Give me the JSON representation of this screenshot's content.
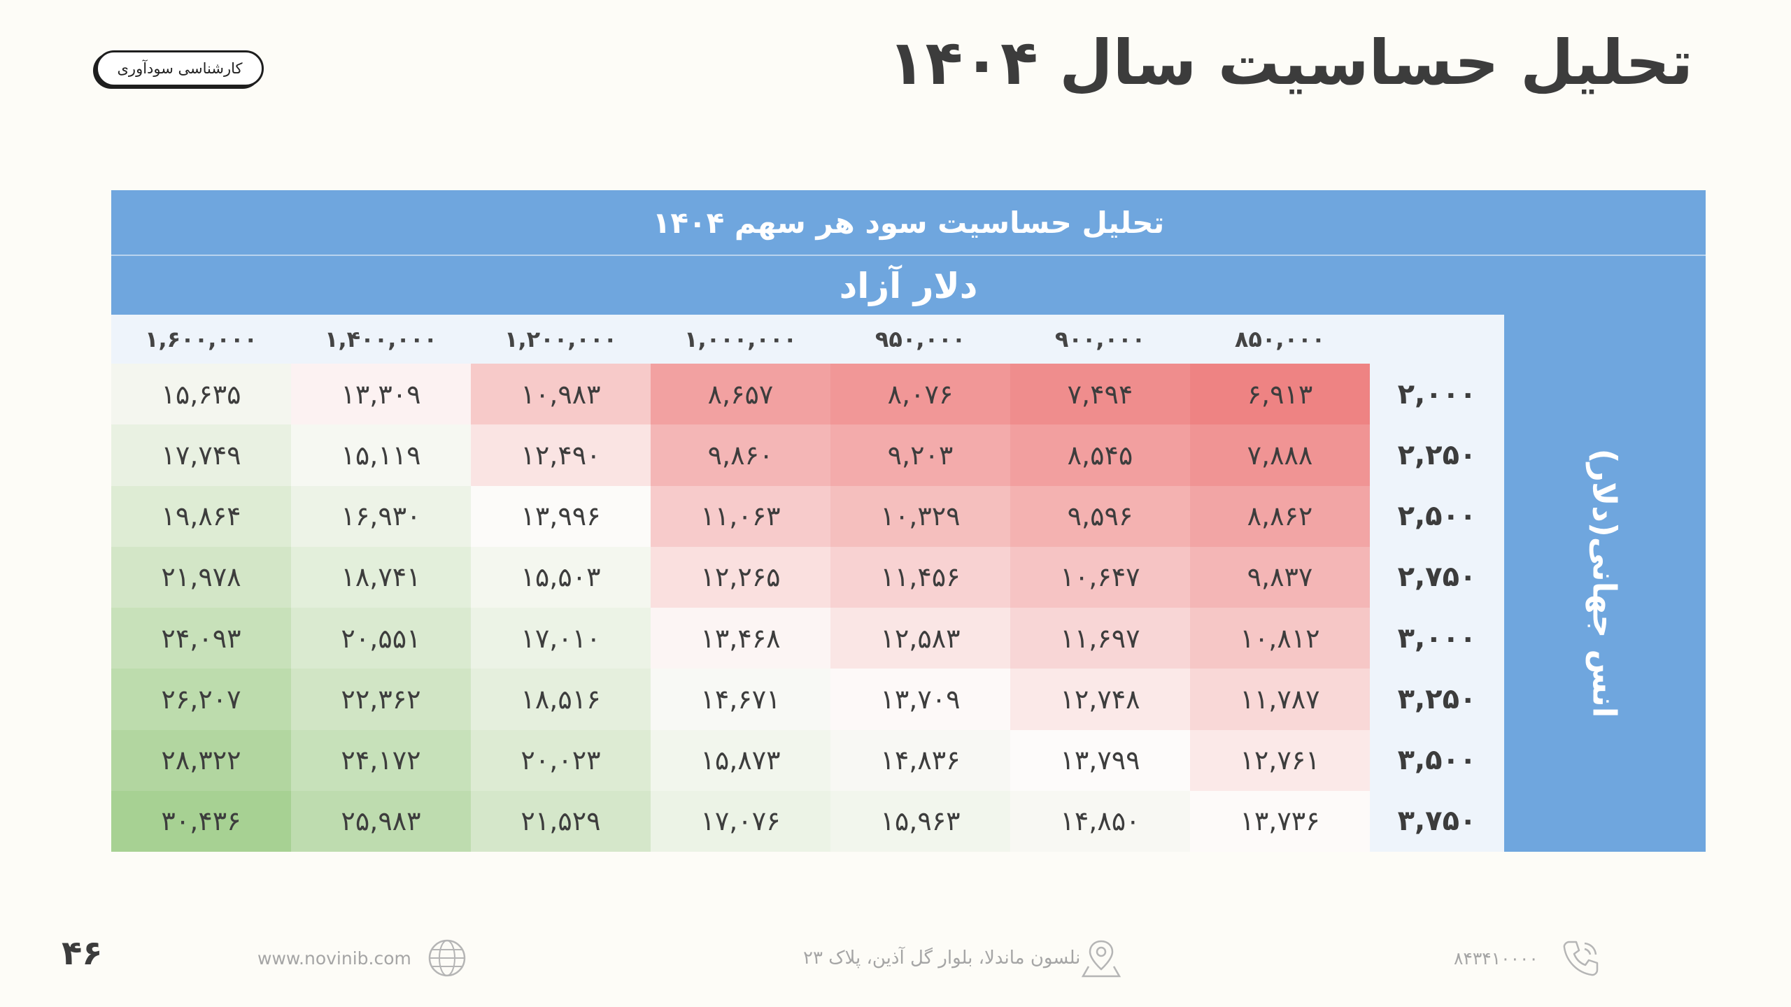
{
  "header": {
    "title": "تحلیل حساسیت سال ۱۴۰۴",
    "badge": "کارشناسی سودآوری"
  },
  "table": {
    "title": "تحلیل حساسیت سود هر سهم ۱۴۰۴",
    "column_group_label": "دلار آزاد",
    "row_group_label": "انس جهانی(دلار)",
    "columns": [
      "۱,۶۰۰,۰۰۰",
      "۱,۴۰۰,۰۰۰",
      "۱,۲۰۰,۰۰۰",
      "۱,۰۰۰,۰۰۰",
      "۹۵۰,۰۰۰",
      "۹۰۰,۰۰۰",
      "۸۵۰,۰۰۰"
    ],
    "rows": [
      {
        "label": "۲,۰۰۰",
        "values": [
          "۱۵,۶۳۵",
          "۱۳,۳۰۹",
          "۱۰,۹۸۳",
          "۸,۶۵۷",
          "۸,۰۷۶",
          "۷,۴۹۴",
          "۶,۹۱۳"
        ]
      },
      {
        "label": "۲,۲۵۰",
        "values": [
          "۱۷,۷۴۹",
          "۱۵,۱۱۹",
          "۱۲,۴۹۰",
          "۹,۸۶۰",
          "۹,۲۰۳",
          "۸,۵۴۵",
          "۷,۸۸۸"
        ]
      },
      {
        "label": "۲,۵۰۰",
        "values": [
          "۱۹,۸۶۴",
          "۱۶,۹۳۰",
          "۱۳,۹۹۶",
          "۱۱,۰۶۳",
          "۱۰,۳۲۹",
          "۹,۵۹۶",
          "۸,۸۶۲"
        ]
      },
      {
        "label": "۲,۷۵۰",
        "values": [
          "۲۱,۹۷۸",
          "۱۸,۷۴۱",
          "۱۵,۵۰۳",
          "۱۲,۲۶۵",
          "۱۱,۴۵۶",
          "۱۰,۶۴۷",
          "۹,۸۳۷"
        ]
      },
      {
        "label": "۳,۰۰۰",
        "values": [
          "۲۴,۰۹۳",
          "۲۰,۵۵۱",
          "۱۷,۰۱۰",
          "۱۳,۴۶۸",
          "۱۲,۵۸۳",
          "۱۱,۶۹۷",
          "۱۰,۸۱۲"
        ]
      },
      {
        "label": "۳,۲۵۰",
        "values": [
          "۲۶,۲۰۷",
          "۲۲,۳۶۲",
          "۱۸,۵۱۶",
          "۱۴,۶۷۱",
          "۱۳,۷۰۹",
          "۱۲,۷۴۸",
          "۱۱,۷۸۷"
        ]
      },
      {
        "label": "۳,۵۰۰",
        "values": [
          "۲۸,۳۲۲",
          "۲۴,۱۷۲",
          "۲۰,۰۲۳",
          "۱۵,۸۷۳",
          "۱۴,۸۳۶",
          "۱۳,۷۹۹",
          "۱۲,۷۶۱"
        ]
      },
      {
        "label": "۳,۷۵۰",
        "values": [
          "۳۰,۴۳۶",
          "۲۵,۹۸۳",
          "۲۱,۵۲۹",
          "۱۷,۰۷۶",
          "۱۵,۹۶۳",
          "۱۴,۸۵۰",
          "۱۳,۷۳۶"
        ]
      }
    ],
    "heatmap_colors": {
      "low": "#ee8383",
      "mid": "#fdfbfa",
      "high": "#a7d193"
    }
  },
  "footer": {
    "page_number": "۴۶",
    "website": "www.novinib.com",
    "address": "نلسون ماندلا، بلوار گل آذین، پلاک ۲۳",
    "phone": "۸۴۳۴۱۰۰۰۰"
  }
}
